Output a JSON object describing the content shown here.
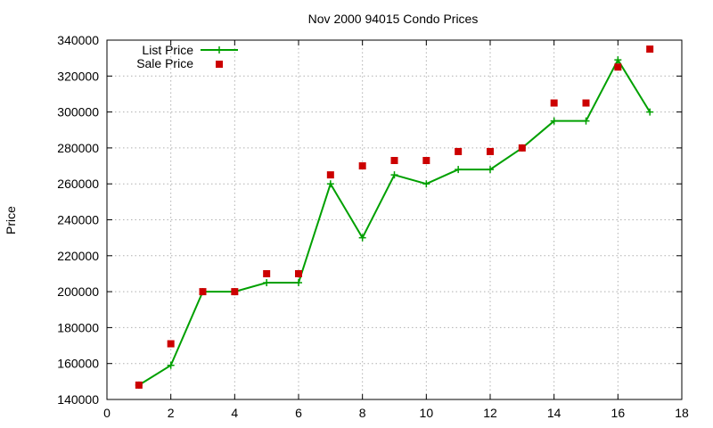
{
  "chart_data": {
    "type": "line",
    "title": "Nov 2000 94015 Condo Prices",
    "xlabel": "",
    "ylabel": "Price",
    "xlim": [
      0,
      18
    ],
    "ylim": [
      140000,
      340000
    ],
    "xticks": [
      0,
      2,
      4,
      6,
      8,
      10,
      12,
      14,
      16,
      18
    ],
    "yticks": [
      140000,
      160000,
      180000,
      200000,
      220000,
      240000,
      260000,
      280000,
      300000,
      320000,
      340000
    ],
    "grid": true,
    "legend_position": "top-left",
    "series": [
      {
        "name": "List Price",
        "style": "line-with-plus-markers",
        "color": "#00a000",
        "x": [
          1,
          2,
          3,
          4,
          5,
          6,
          7,
          8,
          9,
          10,
          11,
          12,
          13,
          14,
          15,
          16,
          17
        ],
        "y": [
          148000,
          159000,
          200000,
          200000,
          205000,
          205000,
          260000,
          230000,
          265000,
          260000,
          268000,
          268000,
          280000,
          295000,
          295000,
          329000,
          300000
        ]
      },
      {
        "name": "Sale Price",
        "style": "square-points",
        "color": "#cc0000",
        "x": [
          1,
          2,
          3,
          4,
          5,
          6,
          7,
          8,
          9,
          10,
          11,
          12,
          13,
          14,
          15,
          16,
          17
        ],
        "y": [
          148000,
          171000,
          200000,
          200000,
          210000,
          210000,
          265000,
          270000,
          273000,
          273000,
          278000,
          278000,
          280000,
          305000,
          305000,
          325000,
          335000
        ]
      }
    ]
  }
}
